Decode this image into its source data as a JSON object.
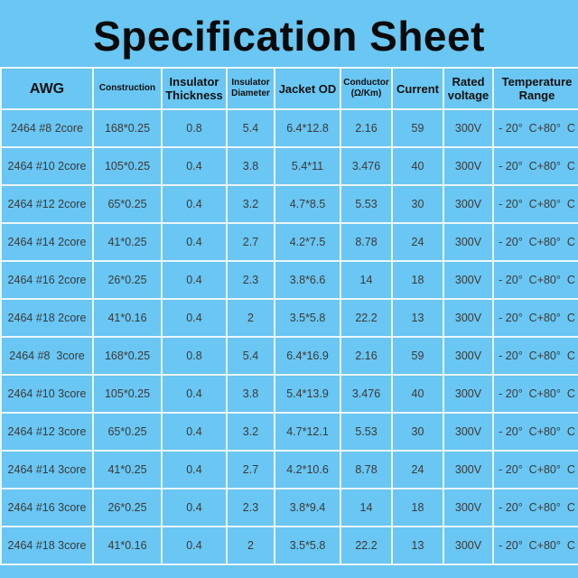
{
  "title": "Specification Sheet",
  "colors": {
    "background": "#6ac6f2",
    "grid": "#eaf6fd",
    "text": "#3a3a3a"
  },
  "headers": [
    "AWG",
    "Construction",
    "Insulator Thickness",
    "Insulator Diameter",
    "Jacket OD",
    "Conductor (Ω/Km)",
    "Current",
    "Rated voltage",
    "Temperature Range"
  ],
  "header_lines": [
    [
      "AWG",
      ""
    ],
    [
      "Construction",
      ""
    ],
    [
      "Insulator",
      "Thickness"
    ],
    [
      "Insulator",
      "Diameter"
    ],
    [
      "Jacket OD",
      ""
    ],
    [
      "Conductor",
      "(Ω/Km)"
    ],
    [
      "Current",
      ""
    ],
    [
      "Rated",
      "voltage"
    ],
    [
      "Temperature",
      "Range"
    ]
  ],
  "rows": [
    [
      "2464 #8 2core",
      "168*0.25",
      "0.8",
      "5.4",
      "6.4*12.8",
      "2.16",
      "59",
      "300V",
      "- 20°  C+80°  C"
    ],
    [
      "2464 #10 2core",
      "105*0.25",
      "0.4",
      "3.8",
      "5.4*11",
      "3.476",
      "40",
      "300V",
      "- 20°  C+80°  C"
    ],
    [
      "2464 #12 2core",
      "65*0.25",
      "0.4",
      "3.2",
      "4.7*8.5",
      "5.53",
      "30",
      "300V",
      "- 20°  C+80°  C"
    ],
    [
      "2464 #14 2core",
      "41*0.25",
      "0.4",
      "2.7",
      "4.2*7.5",
      "8.78",
      "24",
      "300V",
      "- 20°  C+80°  C"
    ],
    [
      "2464 #16 2core",
      "26*0.25",
      "0.4",
      "2.3",
      "3.8*6.6",
      "14",
      "18",
      "300V",
      "- 20°  C+80°  C"
    ],
    [
      "2464 #18 2core",
      "41*0.16",
      "0.4",
      "2",
      "3.5*5.8",
      "22.2",
      "13",
      "300V",
      "- 20°  C+80°  C"
    ],
    [
      "2464 #8  3core",
      "168*0.25",
      "0.8",
      "5.4",
      "6.4*16.9",
      "2.16",
      "59",
      "300V",
      "- 20°  C+80°  C"
    ],
    [
      "2464 #10 3core",
      "105*0.25",
      "0.4",
      "3.8",
      "5.4*13.9",
      "3.476",
      "40",
      "300V",
      "- 20°  C+80°  C"
    ],
    [
      "2464 #12 3core",
      "65*0.25",
      "0.4",
      "3.2",
      "4.7*12.1",
      "5.53",
      "30",
      "300V",
      "- 20°  C+80°  C"
    ],
    [
      "2464 #14 3core",
      "41*0.25",
      "0.4",
      "2.7",
      "4.2*10.6",
      "8.78",
      "24",
      "300V",
      "- 20°  C+80°  C"
    ],
    [
      "2464 #16 3core",
      "26*0.25",
      "0.4",
      "2.3",
      "3.8*9.4",
      "14",
      "18",
      "300V",
      "- 20°  C+80°  C"
    ],
    [
      "2464 #18 3core",
      "41*0.16",
      "0.4",
      "2",
      "3.5*5.8",
      "22.2",
      "13",
      "300V",
      "- 20°  C+80°  C"
    ]
  ]
}
